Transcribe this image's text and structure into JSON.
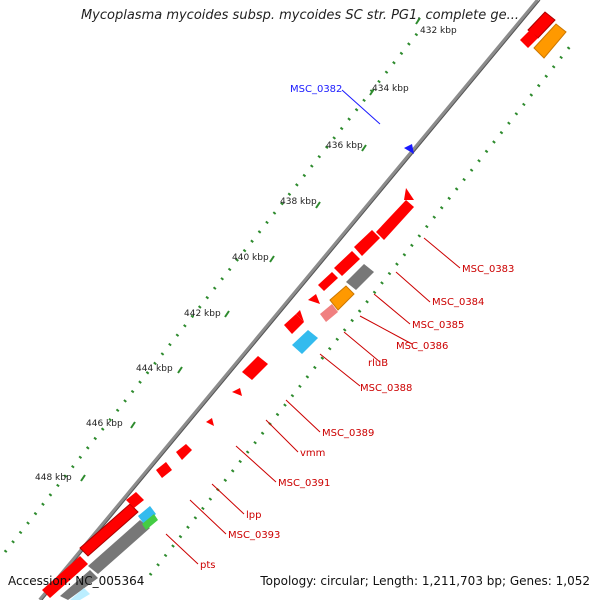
{
  "title": "Mycoplasma mycoides subsp. mycoides SC str. PG1, complete ge...",
  "footer": {
    "accession": "Accession: NC_005364",
    "topology": "Topology: circular; Length: 1,211,703 bp; Genes: 1,052"
  },
  "colors": {
    "backbone": "#8c8c8c",
    "gene": "#ff0000",
    "label": "#cc0000",
    "highlight": "#1a1aff",
    "tick": "#2e8b2e",
    "orange": "#ff9900",
    "cyan": "#33bbee",
    "gray": "#777777",
    "pink": "#f08080",
    "green": "#44cc44"
  },
  "scale_labels": [
    "432 kbp",
    "434 kbp",
    "436 kbp",
    "438 kbp",
    "440 kbp",
    "442 kbp",
    "444 kbp",
    "446 kbp",
    "448 kbp"
  ],
  "gene_labels": [
    {
      "text": "MSC_0382",
      "color": "#1a1aff"
    },
    {
      "text": "MSC_0383",
      "color": "#cc0000"
    },
    {
      "text": "MSC_0384",
      "color": "#cc0000"
    },
    {
      "text": "MSC_0385",
      "color": "#cc0000"
    },
    {
      "text": "MSC_0386",
      "color": "#cc0000"
    },
    {
      "text": "rluB",
      "color": "#cc0000"
    },
    {
      "text": "MSC_0388",
      "color": "#cc0000"
    },
    {
      "text": "MSC_0389",
      "color": "#cc0000"
    },
    {
      "text": "vmm",
      "color": "#cc0000"
    },
    {
      "text": "MSC_0391",
      "color": "#cc0000"
    },
    {
      "text": "lpp",
      "color": "#cc0000"
    },
    {
      "text": "MSC_0393",
      "color": "#cc0000"
    },
    {
      "text": "pts",
      "color": "#cc0000"
    }
  ]
}
